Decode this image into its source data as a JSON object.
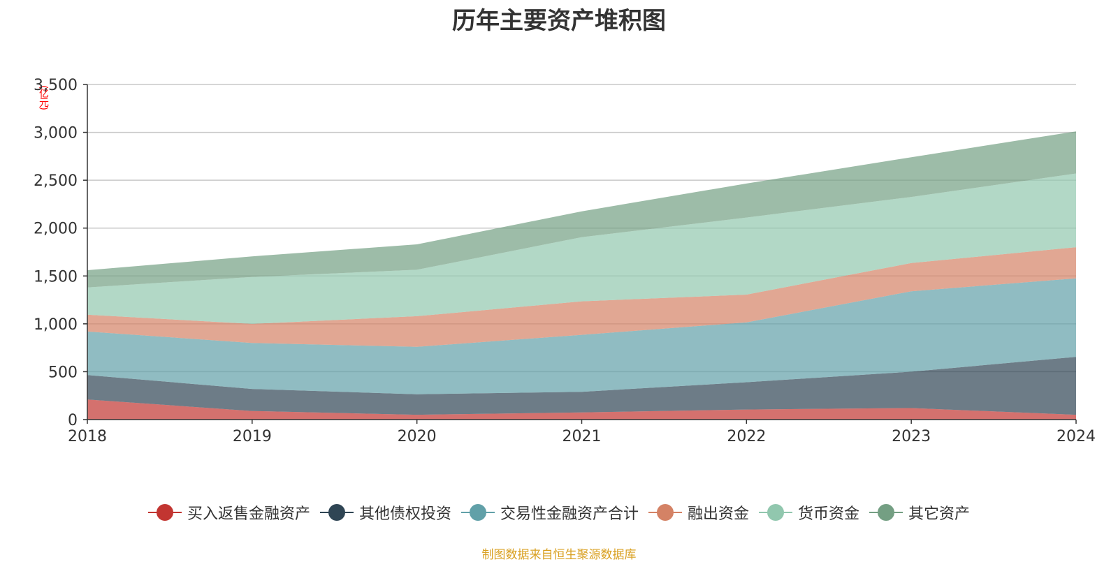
{
  "chart_data": {
    "type": "area",
    "stacked": true,
    "title": "历年主要资产堆积图",
    "unit": "(亿元)",
    "x": [
      "2018",
      "2019",
      "2020",
      "2021",
      "2022",
      "2023",
      "2024"
    ],
    "ylim": [
      0,
      3500
    ],
    "yticks": [
      0,
      500,
      1000,
      1500,
      2000,
      2500,
      3000,
      3500
    ],
    "ytick_labels": [
      "0",
      "500",
      "1,000",
      "1,500",
      "2,000",
      "2,500",
      "3,000",
      "3,500"
    ],
    "grid": true,
    "legend_position": "bottom",
    "series": [
      {
        "name": "买入返售金融资产",
        "color": "#c23531",
        "values": [
          210,
          90,
          50,
          75,
          105,
          120,
          50
        ]
      },
      {
        "name": "其他债权投资",
        "color": "#2f4554",
        "values": [
          255,
          230,
          215,
          215,
          285,
          380,
          605
        ]
      },
      {
        "name": "交易性金融资产合计",
        "color": "#61a0a8",
        "values": [
          455,
          480,
          495,
          595,
          625,
          840,
          820
        ]
      },
      {
        "name": "融出资金",
        "color": "#d48265",
        "values": [
          175,
          200,
          320,
          350,
          290,
          295,
          325
        ]
      },
      {
        "name": "货币资金",
        "color": "#91c7ae",
        "values": [
          285,
          490,
          485,
          670,
          805,
          690,
          770
        ]
      },
      {
        "name": "其它资产",
        "color": "#749f83",
        "values": [
          180,
          215,
          265,
          270,
          355,
          415,
          440
        ]
      }
    ]
  },
  "footer": {
    "source": "制图数据来自恒生聚源数据库"
  }
}
